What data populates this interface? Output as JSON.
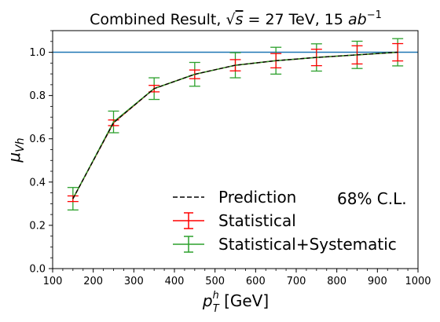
{
  "chart_data": {
    "type": "line",
    "title": "Combined Result, √s = 27 TeV, 15 ab⁻¹",
    "title_parts": {
      "prefix": "Combined Result, ",
      "sqrt_symbol": "√",
      "sqrt_arg": "s",
      "energy": " = 27 TeV, 15 ",
      "lumi_unit": "ab",
      "lumi_exp": "−1"
    },
    "xlabel": "p_T^h [GeV]",
    "xlabel_parts": {
      "base": "p",
      "sup": "h",
      "sub": "T",
      "unit": " [GeV]"
    },
    "ylabel": "μ_Vh",
    "ylabel_parts": {
      "base": "μ",
      "sub": "Vh"
    },
    "xlim": [
      100,
      1000
    ],
    "ylim": [
      0.0,
      1.1
    ],
    "xticks": [
      100,
      200,
      300,
      400,
      500,
      600,
      700,
      800,
      900,
      1000
    ],
    "xtick_labels": [
      "100",
      "200",
      "300",
      "400",
      "500",
      "600",
      "700",
      "800",
      "900",
      "1000"
    ],
    "yticks": [
      0.0,
      0.2,
      0.4,
      0.6,
      0.8,
      1.0
    ],
    "ytick_labels": [
      "0.0",
      "0.2",
      "0.4",
      "0.6",
      "0.8",
      "1.0"
    ],
    "reference_line": {
      "y": 1.0,
      "color": "#1f77b4"
    },
    "x": [
      150,
      250,
      350,
      450,
      550,
      650,
      750,
      850,
      950
    ],
    "series": [
      {
        "name": "Prediction",
        "style": "dashed",
        "color": "#000000",
        "values": [
          0.323,
          0.674,
          0.832,
          0.898,
          0.94,
          0.961,
          0.976,
          0.988,
          1.0
        ]
      },
      {
        "name": "Statistical",
        "style": "errorbar",
        "color": "#ff0000",
        "values": [
          0.323,
          0.674,
          0.832,
          0.898,
          0.94,
          0.961,
          0.976,
          0.988,
          1.0
        ],
        "errors": [
          0.013,
          0.013,
          0.015,
          0.02,
          0.026,
          0.033,
          0.038,
          0.042,
          0.04
        ]
      },
      {
        "name": "Statistical+Systematic",
        "style": "errorbar",
        "color": "#2ca02c",
        "values": [
          0.323,
          0.678,
          0.832,
          0.898,
          0.94,
          0.961,
          0.976,
          0.988,
          1.0
        ],
        "errors": [
          0.052,
          0.05,
          0.05,
          0.055,
          0.058,
          0.062,
          0.063,
          0.063,
          0.063
        ]
      }
    ],
    "legend_position": "lower-center",
    "annotation": "68% C.L.",
    "grid": false
  }
}
